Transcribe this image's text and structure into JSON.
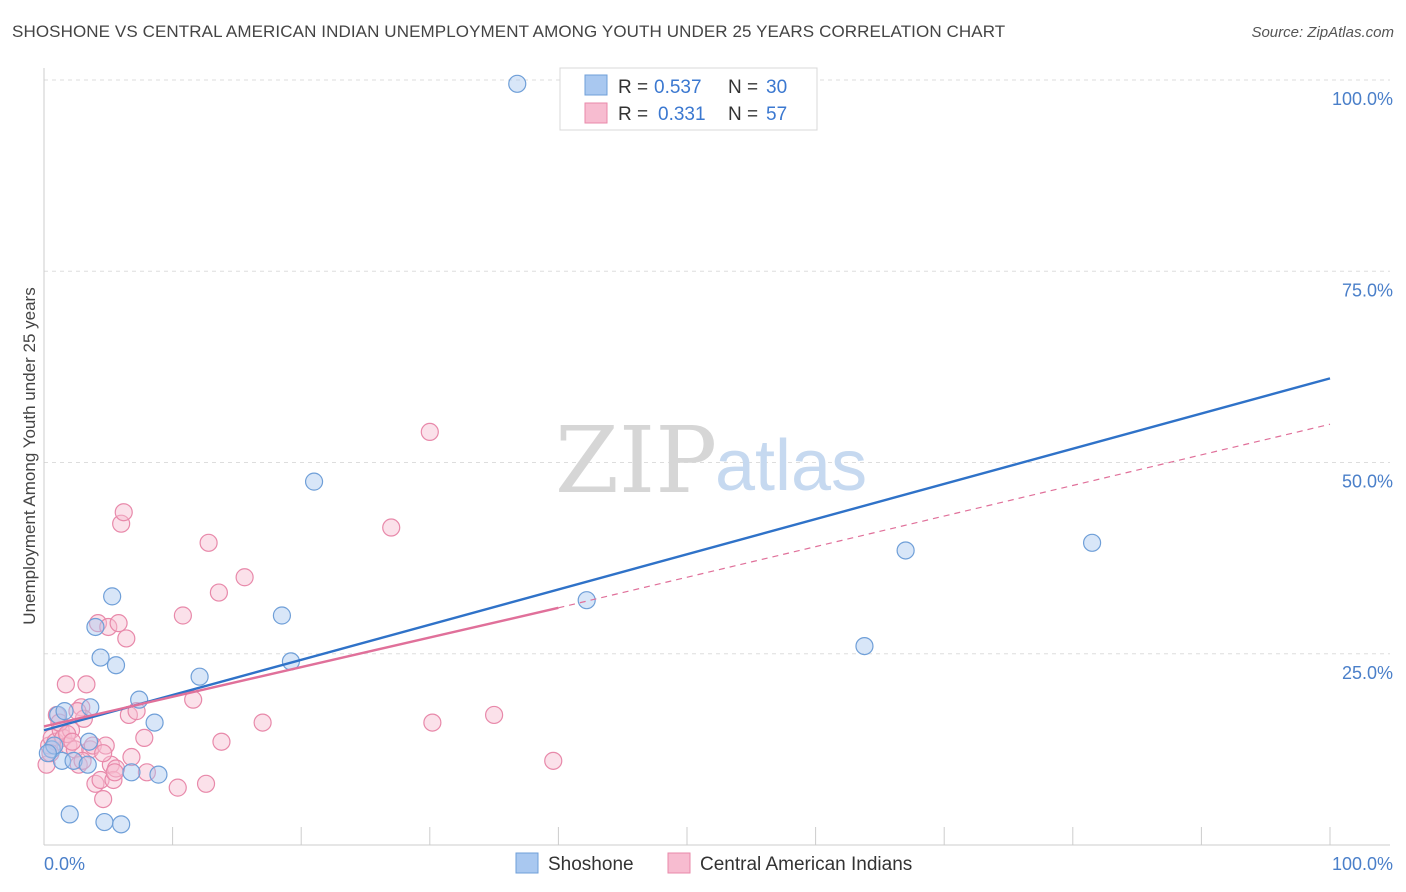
{
  "title": "SHOSHONE VS CENTRAL AMERICAN INDIAN UNEMPLOYMENT AMONG YOUTH UNDER 25 YEARS CORRELATION CHART",
  "source": "Source: ZipAtlas.com",
  "watermark": {
    "zip": "ZIP",
    "atlas": "atlas"
  },
  "colors": {
    "shoshone_fill": "#a9c8f0",
    "shoshone_stroke": "#6f9fd8",
    "shoshone_line": "#2f72c8",
    "cai_fill": "#f7bcd0",
    "cai_stroke": "#e889aa",
    "cai_line": "#e0709a",
    "grid": "#dddddd",
    "axis_tick": "#4a7fc9"
  },
  "chart_data": {
    "type": "scatter",
    "title": "SHOSHONE VS CENTRAL AMERICAN INDIAN UNEMPLOYMENT AMONG YOUTH UNDER 25 YEARS CORRELATION CHART",
    "xlabel": "",
    "ylabel": "Unemployment Among Youth under 25 years",
    "xlim": [
      0,
      100
    ],
    "ylim": [
      0,
      100
    ],
    "y_ticks": [
      25,
      50,
      75,
      100
    ],
    "y_tick_labels": [
      "25.0%",
      "50.0%",
      "75.0%",
      "100.0%"
    ],
    "x_tick_labels": [
      "0.0%",
      "100.0%"
    ],
    "legend": [
      {
        "name": "Shoshone",
        "r_label": "R = ",
        "r": "0.537",
        "n_label": "N = ",
        "n": "30"
      },
      {
        "name": "Central American Indians",
        "r_label": "R = ",
        "r": "0.331",
        "n_label": "N = ",
        "n": "57"
      }
    ],
    "series": [
      {
        "name": "Shoshone",
        "points": [
          [
            0.6,
            12.5
          ],
          [
            0.8,
            13.0
          ],
          [
            1.1,
            17.0
          ],
          [
            1.4,
            11.0
          ],
          [
            1.6,
            17.5
          ],
          [
            2.0,
            4.0
          ],
          [
            2.3,
            11.0
          ],
          [
            3.4,
            10.5
          ],
          [
            3.5,
            13.5
          ],
          [
            3.6,
            18.0
          ],
          [
            4.0,
            28.5
          ],
          [
            4.4,
            24.5
          ],
          [
            4.7,
            3.0
          ],
          [
            5.3,
            32.5
          ],
          [
            5.6,
            23.5
          ],
          [
            6.0,
            2.7
          ],
          [
            6.8,
            9.5
          ],
          [
            7.4,
            19.0
          ],
          [
            8.6,
            16.0
          ],
          [
            8.9,
            9.2
          ],
          [
            12.1,
            22.0
          ],
          [
            18.5,
            30.0
          ],
          [
            19.2,
            24.0
          ],
          [
            21.0,
            47.5
          ],
          [
            36.8,
            99.5
          ],
          [
            42.2,
            32.0
          ],
          [
            63.8,
            26.0
          ],
          [
            67.0,
            38.5
          ],
          [
            81.5,
            39.5
          ],
          [
            0.3,
            12.0
          ]
        ],
        "trend": {
          "x0": 0,
          "y0": 15.0,
          "x1": 100,
          "y1": 61.0,
          "dashed_to": null
        }
      },
      {
        "name": "Central American Indians",
        "points": [
          [
            0.2,
            10.5
          ],
          [
            0.4,
            13.0
          ],
          [
            0.6,
            14.0
          ],
          [
            0.9,
            13.5
          ],
          [
            1.0,
            17.0
          ],
          [
            1.3,
            15.0
          ],
          [
            1.5,
            14.0
          ],
          [
            1.7,
            21.0
          ],
          [
            1.9,
            13.0
          ],
          [
            2.1,
            15.0
          ],
          [
            2.4,
            12.5
          ],
          [
            2.7,
            10.5
          ],
          [
            2.9,
            18.0
          ],
          [
            3.1,
            16.5
          ],
          [
            3.3,
            21.0
          ],
          [
            3.6,
            12.5
          ],
          [
            3.8,
            13.0
          ],
          [
            4.0,
            8.0
          ],
          [
            4.2,
            29.0
          ],
          [
            4.4,
            8.5
          ],
          [
            4.6,
            6.0
          ],
          [
            4.8,
            13.0
          ],
          [
            5.0,
            28.5
          ],
          [
            5.2,
            10.5
          ],
          [
            5.4,
            8.5
          ],
          [
            5.6,
            10.0
          ],
          [
            5.8,
            29.0
          ],
          [
            6.0,
            42.0
          ],
          [
            6.2,
            43.5
          ],
          [
            6.4,
            27.0
          ],
          [
            6.6,
            17.0
          ],
          [
            6.8,
            11.5
          ],
          [
            7.2,
            17.5
          ],
          [
            7.8,
            14.0
          ],
          [
            8.0,
            9.5
          ],
          [
            10.4,
            7.5
          ],
          [
            10.8,
            30.0
          ],
          [
            11.6,
            19.0
          ],
          [
            12.6,
            8.0
          ],
          [
            12.8,
            39.5
          ],
          [
            13.6,
            33.0
          ],
          [
            13.8,
            13.5
          ],
          [
            15.6,
            35.0
          ],
          [
            17.0,
            16.0
          ],
          [
            27.0,
            41.5
          ],
          [
            30.0,
            54.0
          ],
          [
            30.2,
            16.0
          ],
          [
            35.0,
            17.0
          ],
          [
            39.6,
            11.0
          ],
          [
            0.5,
            12.0
          ],
          [
            1.2,
            16.0
          ],
          [
            2.6,
            17.5
          ],
          [
            3.0,
            11.0
          ],
          [
            4.6,
            12.0
          ],
          [
            5.5,
            9.5
          ],
          [
            1.8,
            14.5
          ],
          [
            2.2,
            13.5
          ]
        ],
        "trend": {
          "x0": 0,
          "y0": 15.5,
          "x1": 40,
          "y1": 31.0,
          "dashed_to": {
            "x": 100,
            "y": 55.0
          }
        }
      }
    ]
  }
}
